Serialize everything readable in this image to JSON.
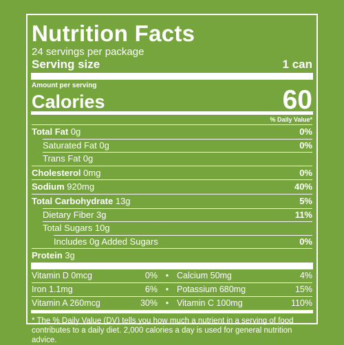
{
  "header": {
    "title": "Nutrition Facts",
    "servings": "24 servings per package",
    "serving_size_label": "Serving size",
    "serving_size_value": "1 can"
  },
  "calories": {
    "amount_label": "Amount per serving",
    "label": "Calories",
    "value": "60"
  },
  "daily_value_header": "% Daily Value*",
  "nutrients": [
    {
      "name": "Total Fat",
      "amount": "0g",
      "dv": "0%"
    },
    {
      "name": "Saturated Fat",
      "amount": "0g",
      "dv": "0%"
    },
    {
      "name": "Trans Fat",
      "amount": "0g",
      "dv": ""
    },
    {
      "name": "Cholesterol",
      "amount": "0mg",
      "dv": "0%"
    },
    {
      "name": "Sodium",
      "amount": "920mg",
      "dv": "40%"
    },
    {
      "name": "Total Carbohydrate",
      "amount": "13g",
      "dv": "5%"
    },
    {
      "name": "Dietary Fiber",
      "amount": "3g",
      "dv": "11%"
    },
    {
      "name": "Total Sugars",
      "amount": "10g",
      "dv": ""
    },
    {
      "name": "Includes 0g Added Sugars",
      "amount": "",
      "dv": "0%"
    },
    {
      "name": "Protein",
      "amount": "3g",
      "dv": ""
    }
  ],
  "vitamins": [
    {
      "left_name": "Vitamin D 0mcg",
      "left_dv": "0%",
      "right_name": "Calcium 50mg",
      "right_dv": "4%"
    },
    {
      "left_name": "Iron 1.1mg",
      "left_dv": "6%",
      "right_name": "Potassium 680mg",
      "right_dv": "15%"
    },
    {
      "left_name": "Vitamin A 260mcg",
      "left_dv": "30%",
      "right_name": "Vitamin C 100mg",
      "right_dv": "110%"
    }
  ],
  "separator": "•",
  "footnote": "* The % Daily Value (DV) tells you how much a nutrient in a serving of food contributes to a daily diet. 2,000 calories a day is used for general nutrition advice.",
  "colors": {
    "background": "#76a53e",
    "text": "#ffffff"
  }
}
